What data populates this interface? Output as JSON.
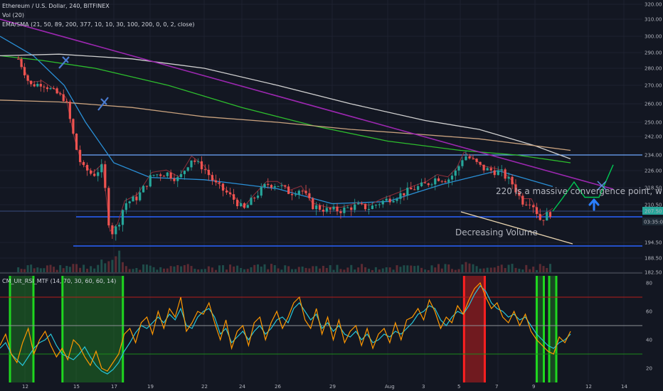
{
  "header": {
    "symbol_line": "Ethereum / U.S. Dollar, 240, BITFINEX",
    "vol_line": "Vol (20)",
    "ema_line": "EMA/SMA (21, 50, 89, 200, 377, 10, 10, 30, 100, 200, 0, 0, 2, close)"
  },
  "rsi_header": "CM_Ult_RSI_MTF (14, 70, 30, 60, 60, 14)",
  "annotations": {
    "convergence_text": "220 Is a massive convergence point, wi",
    "volume_text": "Decreasing Volume"
  },
  "badges": {
    "price_green": "207.50",
    "countdown": "03:35:07"
  },
  "colors": {
    "background": "#131722",
    "candle_up": "#26a69a",
    "candle_down": "#ef5350",
    "trendline_purple": "#9c27b0",
    "level_blue": "#2962ff",
    "ema_green": "#2dbd2d",
    "ema_blue": "#2a8fd6",
    "sma_white": "#d0d0d0",
    "sma_tan": "#c9a27e",
    "rsi_cyan": "#26c6da",
    "rsi_orange": "#ff9800"
  },
  "chart_data": [
    {
      "type": "candlestick",
      "title": "Ethereum / U.S. Dollar, 240, BITFINEX",
      "price_axis_ticks": [
        320.0,
        310.0,
        300.0,
        290.0,
        280.0,
        270.0,
        260.0,
        250.0,
        242.0,
        234.0,
        226.0,
        218.5,
        210.5,
        207.5,
        194.5,
        188.5,
        182.5
      ],
      "date_ticks": [
        "12",
        "15",
        "17",
        "19",
        "22",
        "24",
        "26",
        "29",
        "Aug",
        "3",
        "5",
        "7",
        "9",
        "12",
        "14"
      ],
      "horizontal_levels": [
        234,
        207.5,
        194.5
      ],
      "price_path": [
        {
          "d": 11.6,
          "p": 286
        },
        {
          "d": 12.3,
          "p": 270
        },
        {
          "d": 13,
          "p": 271
        },
        {
          "d": 13.8,
          "p": 266
        },
        {
          "d": 14.4,
          "p": 262
        },
        {
          "d": 14.9,
          "p": 240
        },
        {
          "d": 15.3,
          "p": 228
        },
        {
          "d": 15.9,
          "p": 224
        },
        {
          "d": 16.4,
          "p": 228
        },
        {
          "d": 16.8,
          "p": 198
        },
        {
          "d": 17.2,
          "p": 201
        },
        {
          "d": 17.6,
          "p": 211
        },
        {
          "d": 18.3,
          "p": 214
        },
        {
          "d": 19.1,
          "p": 224
        },
        {
          "d": 19.9,
          "p": 225
        },
        {
          "d": 20.6,
          "p": 222
        },
        {
          "d": 21.3,
          "p": 232
        },
        {
          "d": 22,
          "p": 227
        },
        {
          "d": 22.6,
          "p": 220
        },
        {
          "d": 23.2,
          "p": 216
        },
        {
          "d": 23.7,
          "p": 212
        },
        {
          "d": 24.1,
          "p": 208
        },
        {
          "d": 24.7,
          "p": 214
        },
        {
          "d": 25.4,
          "p": 220
        },
        {
          "d": 26,
          "p": 220
        },
        {
          "d": 26.7,
          "p": 216
        },
        {
          "d": 27.3,
          "p": 218
        },
        {
          "d": 27.9,
          "p": 210
        },
        {
          "d": 28.7,
          "p": 208
        },
        {
          "d": 29.5,
          "p": 208
        },
        {
          "d": 30.3,
          "p": 210
        },
        {
          "d": 31.0,
          "p": 209
        },
        {
          "d": 31.7,
          "p": 212
        },
        {
          "d": 32.6,
          "p": 215
        },
        {
          "d": 33.4,
          "p": 218
        },
        {
          "d": 34.1,
          "p": 220
        },
        {
          "d": 34.7,
          "p": 223
        },
        {
          "d": 35.3,
          "p": 222
        },
        {
          "d": 35.8,
          "p": 226
        },
        {
          "d": 36.2,
          "p": 234
        },
        {
          "d": 36.7,
          "p": 231
        },
        {
          "d": 37.2,
          "p": 227
        },
        {
          "d": 37.7,
          "p": 226
        },
        {
          "d": 38.2,
          "p": 225
        },
        {
          "d": 38.8,
          "p": 220
        },
        {
          "d": 39.3,
          "p": 212
        },
        {
          "d": 39.8,
          "p": 212
        },
        {
          "d": 40.3,
          "p": 204
        },
        {
          "d": 40.7,
          "p": 206
        },
        {
          "d": 41.0,
          "p": 207.5
        }
      ],
      "moving_averages": [
        {
          "name": "EMA blue",
          "points": [
            [
              10.5,
              300
            ],
            [
              12.5,
              288
            ],
            [
              14.3,
              270
            ],
            [
              15.5,
              250
            ],
            [
              17,
              230
            ],
            [
              19,
              223
            ],
            [
              22,
              222
            ],
            [
              26,
              218
            ],
            [
              29,
              211
            ],
            [
              32,
              212
            ],
            [
              35,
              220
            ],
            [
              38,
              226
            ],
            [
              41,
              219
            ]
          ]
        },
        {
          "name": "EMA green",
          "points": [
            [
              10.5,
              288
            ],
            [
              13,
              285
            ],
            [
              16,
              280
            ],
            [
              20,
              270
            ],
            [
              24,
              258
            ],
            [
              28,
              248
            ],
            [
              32,
              240
            ],
            [
              36,
              236
            ],
            [
              39,
              234
            ],
            [
              42,
              230
            ]
          ]
        },
        {
          "name": "SMA white",
          "points": [
            [
              10.5,
              288
            ],
            [
              14,
              289
            ],
            [
              18,
              286
            ],
            [
              22,
              280
            ],
            [
              26,
              270
            ],
            [
              30,
              260
            ],
            [
              34,
              251
            ],
            [
              37,
              246
            ],
            [
              40,
              238
            ],
            [
              42,
              232
            ]
          ]
        },
        {
          "name": "SMA tan",
          "points": [
            [
              10.5,
              262
            ],
            [
              14,
              261
            ],
            [
              18,
              258
            ],
            [
              22,
              253
            ],
            [
              26,
              250
            ],
            [
              30,
              246
            ],
            [
              34,
              243
            ],
            [
              37,
              241
            ],
            [
              40,
              238
            ],
            [
              42,
              236
            ]
          ]
        }
      ],
      "projection": [
        [
          41.0,
          207.5
        ],
        [
          41.5,
          213
        ],
        [
          42.2,
          221
        ],
        [
          42.8,
          214
        ],
        [
          43.6,
          214
        ],
        [
          44.4,
          229
        ]
      ]
    },
    {
      "type": "line",
      "title": "CM_Ult_RSI_MTF (14, 70, 30, 60, 60, 14)",
      "ylim": [
        10,
        85
      ],
      "y_ticks": [
        80,
        60,
        40,
        20
      ],
      "levels": [
        70,
        50,
        30
      ],
      "series": [
        {
          "values": [
            34,
            38,
            30,
            26,
            22,
            28,
            34,
            38,
            40,
            44,
            36,
            30,
            28,
            26,
            30,
            35,
            28,
            22,
            18,
            16,
            19,
            24,
            32,
            38,
            45,
            50,
            48,
            52,
            56,
            52,
            58,
            54,
            62,
            50,
            48,
            56,
            60,
            62,
            56,
            44,
            48,
            38,
            42,
            46,
            40,
            46,
            50,
            44,
            48,
            54,
            56,
            52,
            62,
            66,
            60,
            54,
            58,
            48,
            52,
            46,
            50,
            44,
            42,
            46,
            40,
            44,
            38,
            40,
            44,
            42,
            46,
            44,
            48,
            52,
            58,
            60,
            64,
            62,
            54,
            50,
            56,
            60,
            58,
            64,
            72,
            78,
            74,
            66,
            62,
            60,
            56,
            58,
            54,
            56,
            50,
            44,
            40,
            36,
            34,
            38,
            40,
            44
          ]
        },
        {
          "values": [
            36,
            44,
            30,
            24,
            38,
            48,
            30,
            40,
            46,
            36,
            28,
            34,
            26,
            40,
            36,
            28,
            22,
            32,
            20,
            18,
            24,
            30,
            44,
            48,
            38,
            52,
            56,
            44,
            60,
            48,
            62,
            56,
            70,
            46,
            52,
            60,
            58,
            66,
            52,
            40,
            54,
            34,
            46,
            50,
            36,
            52,
            56,
            40,
            52,
            60,
            48,
            56,
            66,
            70,
            54,
            48,
            62,
            44,
            56,
            40,
            54,
            38,
            46,
            50,
            36,
            48,
            34,
            44,
            48,
            38,
            52,
            40,
            54,
            56,
            62,
            54,
            68,
            60,
            48,
            56,
            52,
            64,
            58,
            68,
            76,
            80,
            70,
            62,
            66,
            56,
            52,
            60,
            50,
            58,
            46,
            40,
            36,
            32,
            30,
            42,
            38,
            46
          ]
        }
      ],
      "shaded_zones": [
        {
          "from": 11.1,
          "to": 12.5,
          "color": "green"
        },
        {
          "from": 14.2,
          "to": 17.5,
          "color": "green"
        },
        {
          "from": 36.2,
          "to": 37.3,
          "color": "red"
        },
        {
          "from": 40.1,
          "to": 40.5,
          "color": "green"
        },
        {
          "from": 40.8,
          "to": 41.2,
          "color": "green"
        }
      ]
    }
  ]
}
